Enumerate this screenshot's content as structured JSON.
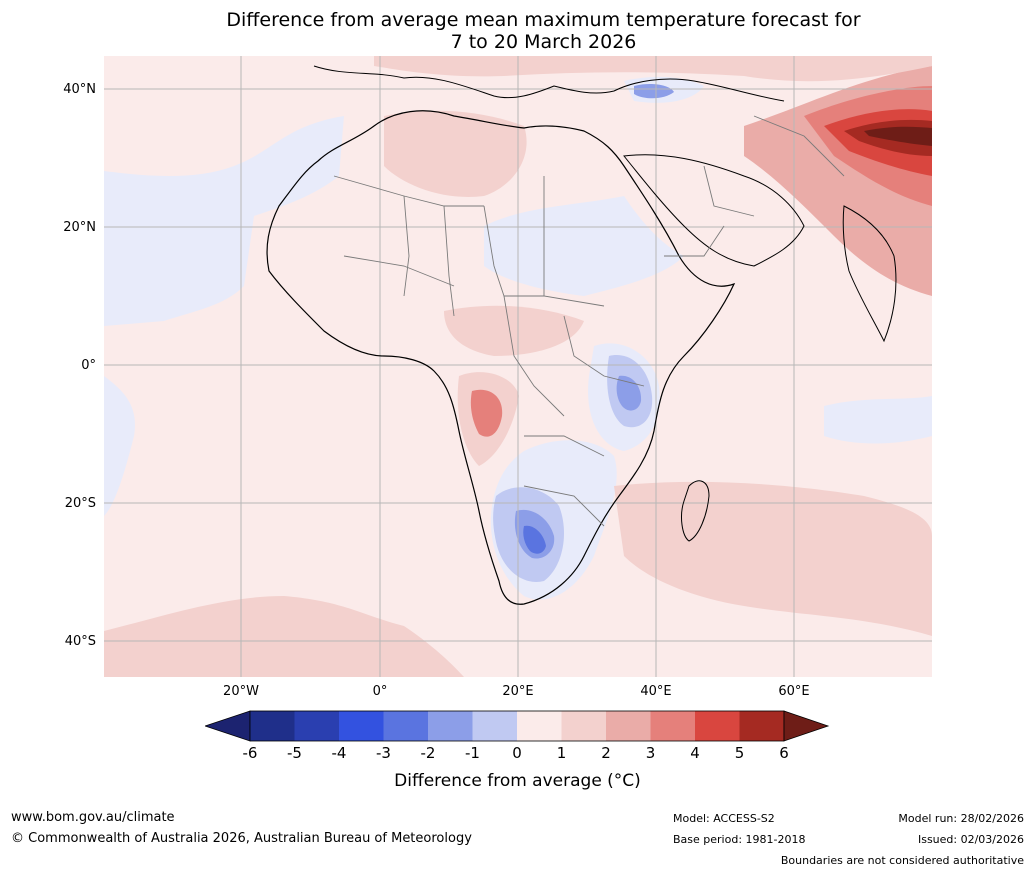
{
  "title": {
    "line1": "Difference from average mean maximum temperature forecast for",
    "line2": "7 to 20 March 2026"
  },
  "map": {
    "region": "Africa, Europe and Middle East",
    "lat_labels": [
      "40°N",
      "20°N",
      "0°",
      "20°S",
      "40°S"
    ],
    "lon_labels": [
      "20°W",
      "0°",
      "20°E",
      "40°E",
      "60°E"
    ]
  },
  "colorbar": {
    "ticks": [
      "-6",
      "-5",
      "-4",
      "-3",
      "-2",
      "-1",
      "0",
      "1",
      "2",
      "3",
      "4",
      "5",
      "6"
    ],
    "label": "Difference from average (°C)",
    "colors": [
      "#1f2f8a",
      "#2a3fb0",
      "#3352e0",
      "#5a74e0",
      "#8c9ee8",
      "#c0c9f2",
      "#e8ebfa",
      "#fbebea",
      "#f3d1ce",
      "#eaaca8",
      "#e5807b",
      "#d9463f",
      "#a52a22"
    ],
    "under_color": "#1c2370",
    "over_color": "#6e1d17"
  },
  "footer": {
    "website": "www.bom.gov.au/climate",
    "copyright": "© Commonwealth of Australia 2026, Australian Bureau of Meteorology",
    "model": "Model: ACCESS-S2",
    "base_period": "Base period: 1981-2018",
    "model_run": "Model run: 28/02/2026",
    "issued": "Issued: 02/03/2026",
    "disclaimer": "Boundaries are not considered authoritative"
  }
}
